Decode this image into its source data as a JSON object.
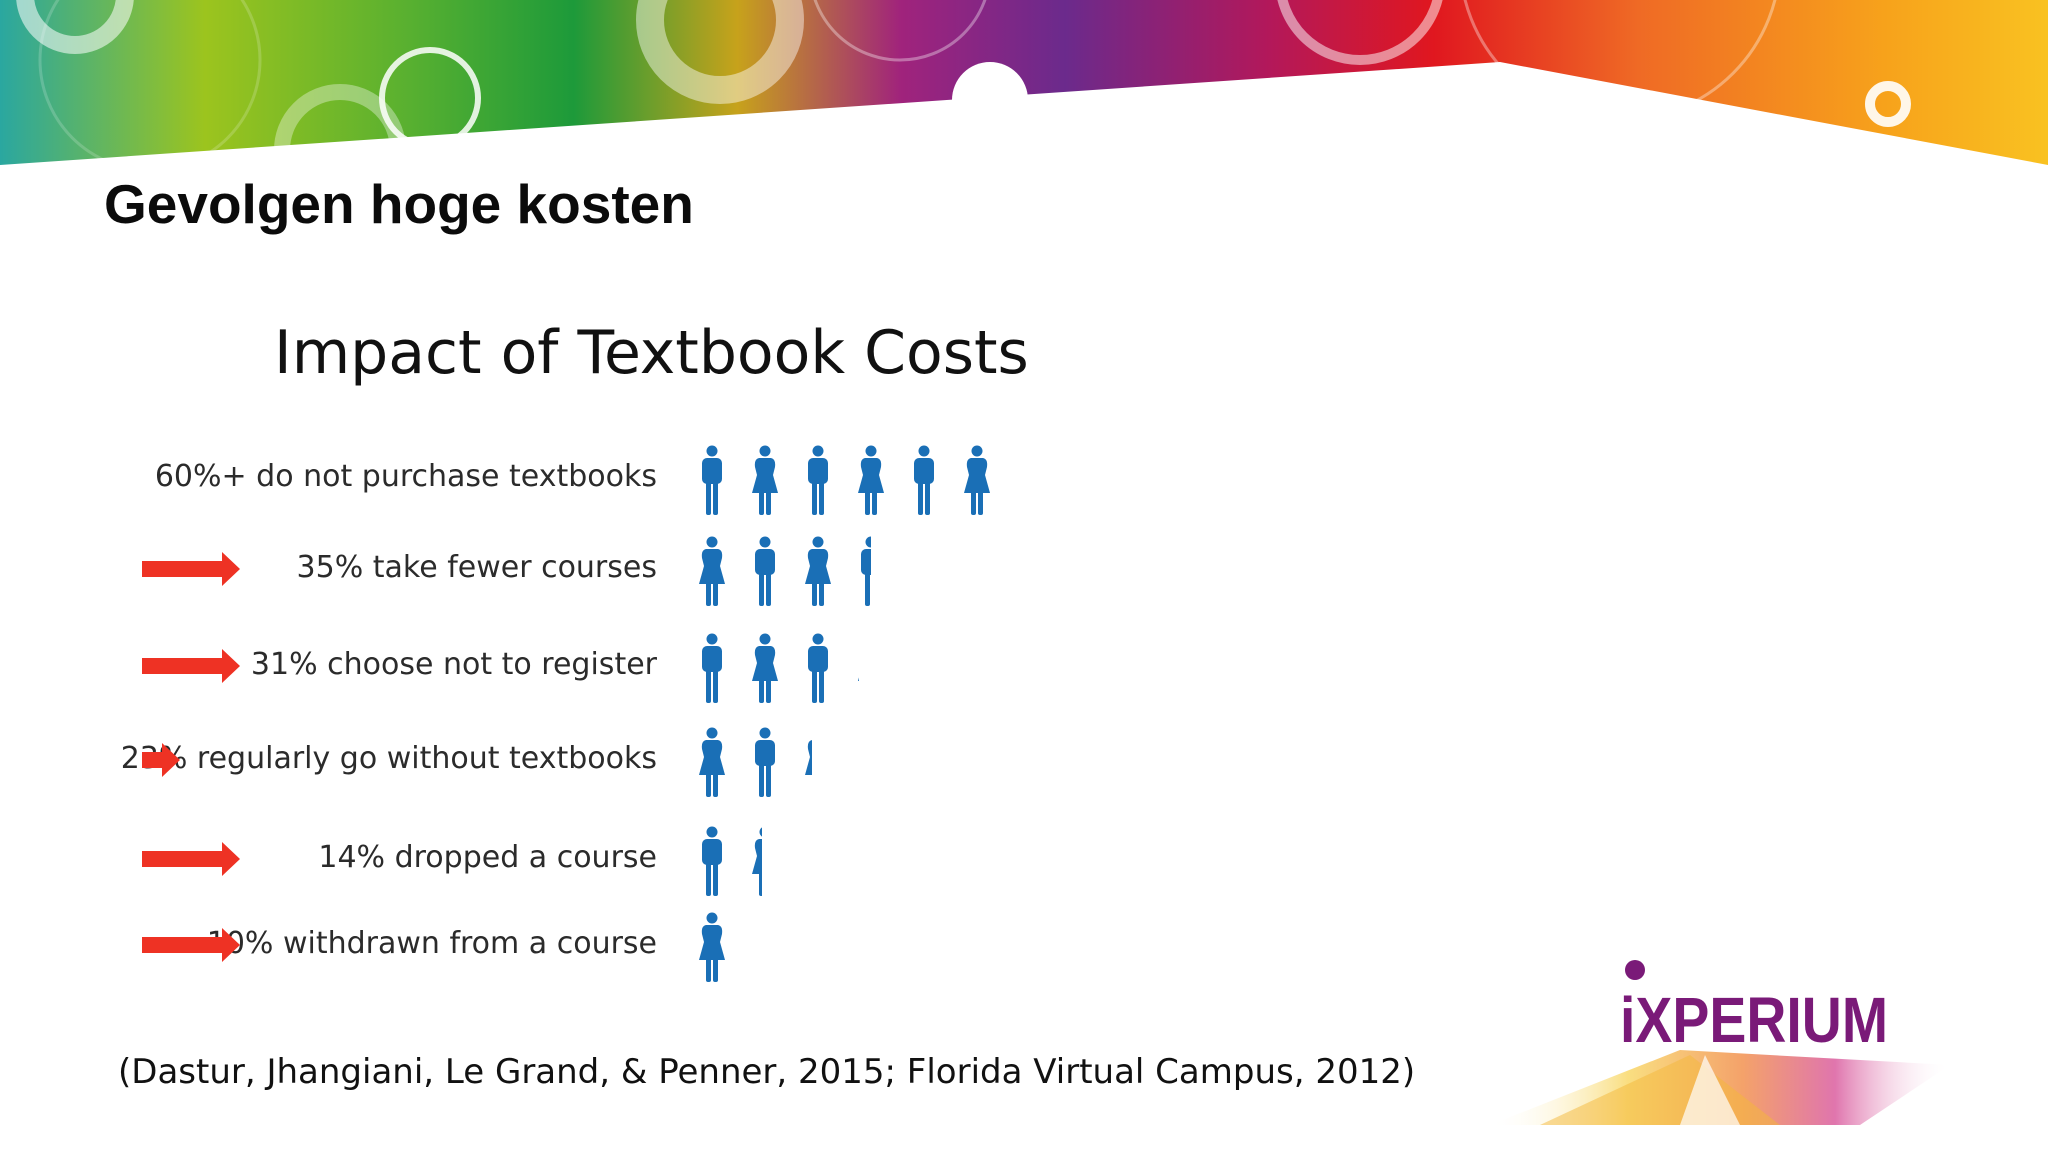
{
  "slide": {
    "title": "Gevolgen hoge kosten",
    "citation": "(Dastur, Jhangiani, Le Grand, & Penner, 2015; Florida Virtual Campus, 2012)",
    "logo_text": "iXPERIUM"
  },
  "colors": {
    "figure": "#1a6fb6",
    "arrow": "#ee3224",
    "logo": "#7a1a78"
  },
  "chart_data": {
    "type": "pictograph",
    "title": "Impact of Textbook Costs",
    "unit": "one figure = 10%",
    "rows": [
      {
        "label": "60%+ do not purchase textbooks",
        "value": 60,
        "arrow": false
      },
      {
        "label": "35% take fewer courses",
        "value": 35,
        "arrow": true
      },
      {
        "label": "31% choose not to register",
        "value": 31,
        "arrow": true
      },
      {
        "label": "23% regularly go without textbooks",
        "value": 23,
        "arrow": true
      },
      {
        "label": "14% dropped a course",
        "value": 14,
        "arrow": true
      },
      {
        "label": "10% withdrawn from a course",
        "value": 10,
        "arrow": true
      }
    ]
  }
}
